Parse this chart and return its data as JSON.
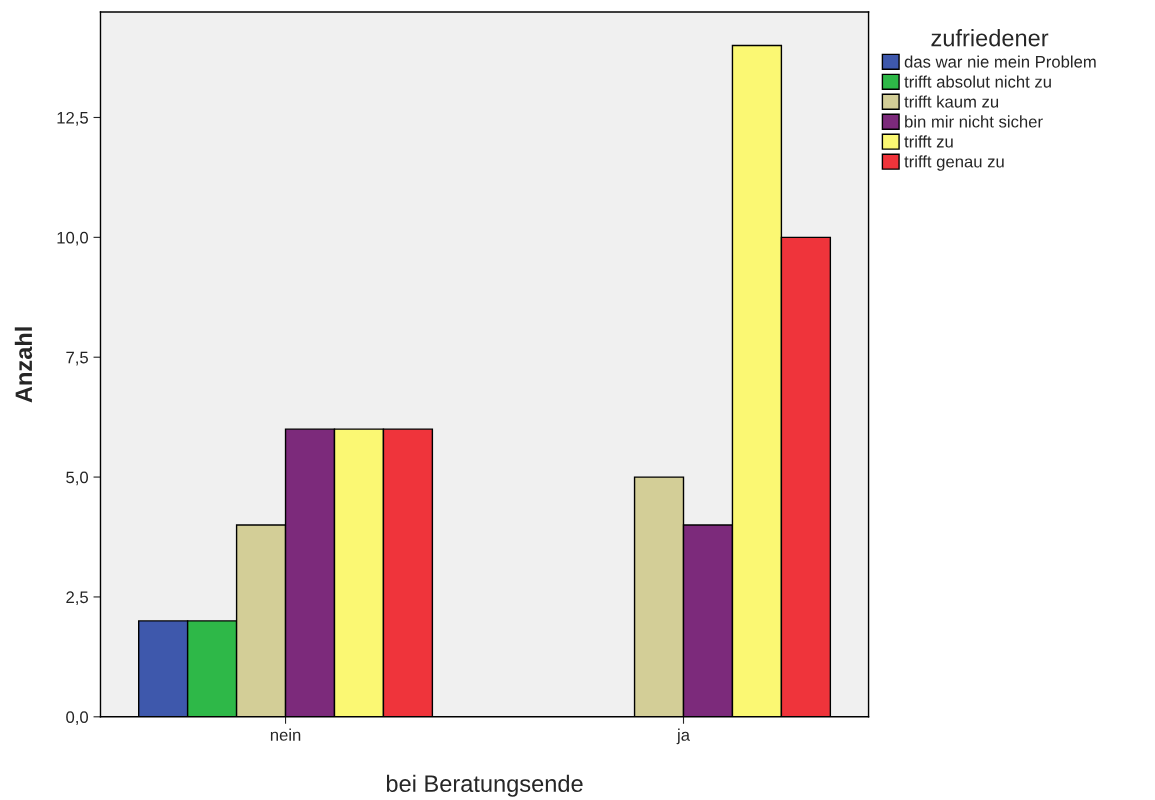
{
  "chart_data": {
    "type": "bar",
    "xlabel": "bei Beratungsende",
    "ylabel": "Anzahl",
    "legend_title": "zufriedener",
    "categories": [
      "nein",
      "ja"
    ],
    "series": [
      {
        "name": "das war nie mein Problem",
        "color": "#3e58ac",
        "values": [
          2,
          null
        ]
      },
      {
        "name": "trifft absolut nicht zu",
        "color": "#2eb848",
        "values": [
          2,
          null
        ]
      },
      {
        "name": "trifft kaum zu",
        "color": "#d3ce97",
        "values": [
          4,
          5
        ]
      },
      {
        "name": "bin mir nicht sicher",
        "color": "#7c2a7b",
        "values": [
          6,
          4
        ]
      },
      {
        "name": "trifft zu",
        "color": "#fbf873",
        "values": [
          6,
          14
        ]
      },
      {
        "name": "trifft genau zu",
        "color": "#ef343b",
        "values": [
          6,
          10
        ]
      }
    ],
    "ylim": [
      0,
      14.7
    ],
    "yticks": [
      {
        "value": 0,
        "label": "0,0"
      },
      {
        "value": 2.5,
        "label": "2,5"
      },
      {
        "value": 5,
        "label": "5,0"
      },
      {
        "value": 7.5,
        "label": "7,5"
      },
      {
        "value": 10,
        "label": "10,0"
      },
      {
        "value": 12.5,
        "label": "12,5"
      }
    ],
    "grid": false,
    "legend": "top right"
  }
}
